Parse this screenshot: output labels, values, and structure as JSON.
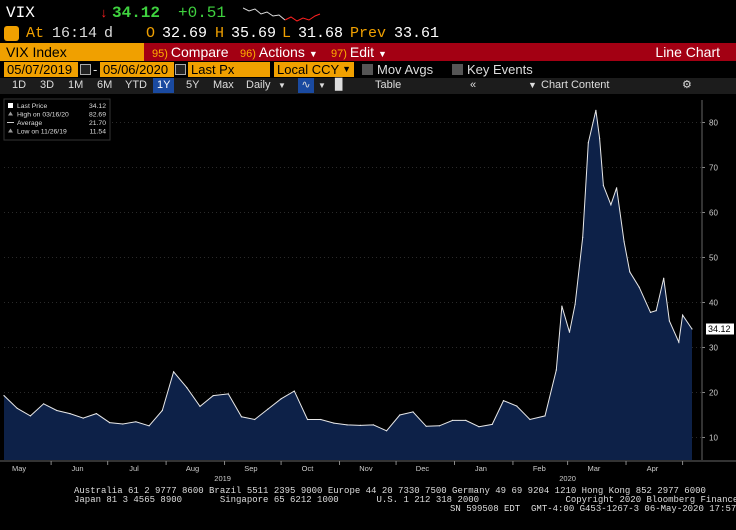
{
  "quote": {
    "ticker": "VIX",
    "price": "34.12",
    "change": "+0.51",
    "at_label": "At",
    "time": "16:14",
    "d_label": "d",
    "open_label": "O",
    "open": "32.69",
    "high_label": "H",
    "high": "35.69",
    "low_label": "L",
    "low": "31.68",
    "prev_label": "Prev",
    "prev": "33.61"
  },
  "header": {
    "title": "VIX Index",
    "compare_num": "95)",
    "compare": "Compare",
    "actions_num": "96)",
    "actions": "Actions",
    "edit_num": "97)",
    "edit": "Edit",
    "line_chart": "Line Chart"
  },
  "settings": {
    "start_date": "05/07/2019",
    "end_date": "05/06/2020",
    "price_field": "Last Px",
    "currency": "Local CCY",
    "mov_avgs": "Mov Avgs",
    "key_events": "Key Events"
  },
  "tools": {
    "ranges": [
      "1D",
      "3D",
      "1M",
      "6M",
      "YTD",
      "1Y",
      "5Y",
      "Max"
    ],
    "selected_range": "1Y",
    "frequency": "Daily",
    "table": "Table",
    "chart_content": "Chart Content"
  },
  "colors": {
    "accent_orange": "#f0a000",
    "header_red": "#a30013",
    "area_fill": "#0d2148",
    "line": "#e8e8e8",
    "price_up_green": "#3fd23f",
    "price_down_red": "#ff2020"
  },
  "chart_data": {
    "type": "area",
    "legend": [
      {
        "label": "Last Price",
        "value": "34.12"
      },
      {
        "label": "High on 03/16/20",
        "value": "82.69"
      },
      {
        "label": "Average",
        "value": "21.70"
      },
      {
        "label": "Low on 11/26/19",
        "value": "11.54"
      }
    ],
    "last_price_tag": "34.12",
    "ylim": [
      5,
      85
    ],
    "yticks": [
      "10",
      "20",
      "30",
      "40",
      "50",
      "60",
      "70",
      "80"
    ],
    "xticks": [
      "May",
      "Jun",
      "Jul",
      "Aug",
      "Sep",
      "Oct",
      "Nov",
      "Dec",
      "Jan",
      "Feb",
      "Mar",
      "Apr"
    ],
    "year_labels": [
      "2019",
      "2020"
    ],
    "x": [
      "2019-05-07",
      "2019-05-14",
      "2019-05-21",
      "2019-05-28",
      "2019-06-04",
      "2019-06-11",
      "2019-06-18",
      "2019-06-25",
      "2019-07-02",
      "2019-07-09",
      "2019-07-16",
      "2019-07-23",
      "2019-07-30",
      "2019-08-05",
      "2019-08-12",
      "2019-08-19",
      "2019-08-26",
      "2019-09-03",
      "2019-09-10",
      "2019-09-17",
      "2019-09-24",
      "2019-10-01",
      "2019-10-08",
      "2019-10-15",
      "2019-10-22",
      "2019-10-29",
      "2019-11-05",
      "2019-11-12",
      "2019-11-19",
      "2019-11-26",
      "2019-12-03",
      "2019-12-10",
      "2019-12-17",
      "2019-12-24",
      "2019-12-31",
      "2020-01-07",
      "2020-01-14",
      "2020-01-21",
      "2020-01-27",
      "2020-02-03",
      "2020-02-10",
      "2020-02-18",
      "2020-02-24",
      "2020-02-27",
      "2020-03-02",
      "2020-03-05",
      "2020-03-09",
      "2020-03-12",
      "2020-03-16",
      "2020-03-18",
      "2020-03-20",
      "2020-03-24",
      "2020-03-27",
      "2020-03-31",
      "2020-04-03",
      "2020-04-08",
      "2020-04-14",
      "2020-04-17",
      "2020-04-21",
      "2020-04-24",
      "2020-04-29",
      "2020-05-01",
      "2020-05-06"
    ],
    "y": [
      19.3,
      16.5,
      14.8,
      17.5,
      16.0,
      15.3,
      14.3,
      15.3,
      13.3,
      13.0,
      13.5,
      12.6,
      16.0,
      24.6,
      21.1,
      16.9,
      19.3,
      19.7,
      14.6,
      14.0,
      16.3,
      18.6,
      20.3,
      14.0,
      14.0,
      13.2,
      12.8,
      12.7,
      12.8,
      11.5,
      15.0,
      15.7,
      12.5,
      12.6,
      13.8,
      13.8,
      12.4,
      12.9,
      18.2,
      17.0,
      14.0,
      14.8,
      25.0,
      39.2,
      33.4,
      39.6,
      54.5,
      75.5,
      82.7,
      76.5,
      66.0,
      61.7,
      65.5,
      53.5,
      46.8,
      43.4,
      37.8,
      38.2,
      45.4,
      35.9,
      31.2,
      37.2,
      34.1
    ]
  },
  "footer": {
    "line1": "Australia 61 2 9777 8600 Brazil 5511 2395 9000 Europe 44 20 7330 7500 Germany 49 69 9204 1210 Hong Kong 852 2977 6000",
    "line2": "Japan 81 3 4565 8900       Singapore 65 6212 1000       U.S. 1 212 318 2000                Copyright 2020 Bloomberg Finance L.P.",
    "line3": "SN 599508 EDT  GMT-4:00 G453-1267-3 06-May-2020 17:57:11"
  }
}
